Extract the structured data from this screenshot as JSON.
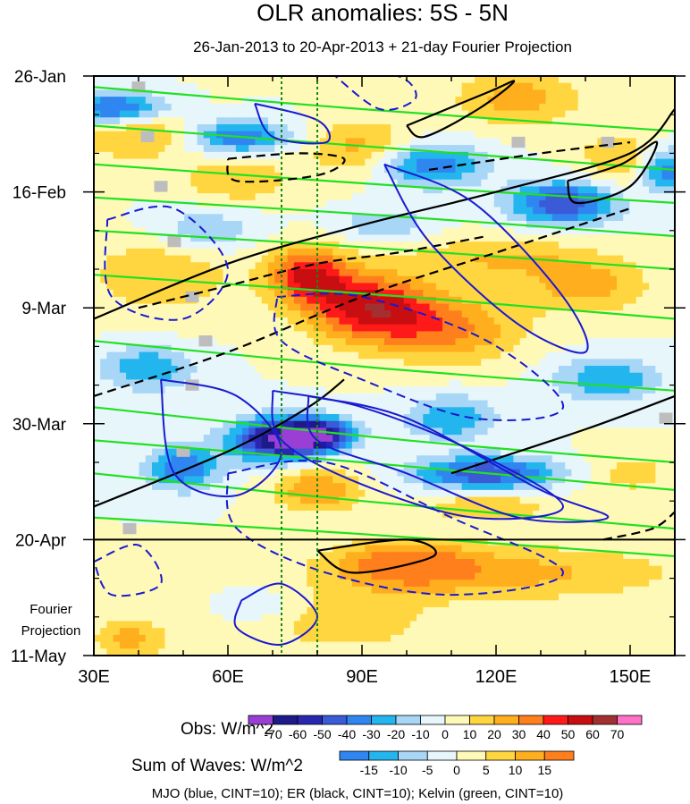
{
  "chart_data": {
    "type": "heatmap",
    "title": "OLR anomalies: 5S - 5N",
    "subtitle": "26-Jan-2013 to 20-Apr-2013 + 21-day Fourier Projection",
    "x_axis": {
      "range": [
        30,
        160
      ],
      "ticks": [
        30,
        60,
        90,
        120,
        150
      ],
      "tick_labels": [
        "30E",
        "60E",
        "90E",
        "120E",
        "150E"
      ],
      "units": "degrees east"
    },
    "y_axis": {
      "range_days": [
        0,
        105
      ],
      "ticks_days": [
        0,
        21,
        42,
        63,
        84,
        105
      ],
      "tick_labels": [
        "26-Jan",
        "16-Feb",
        "9-Mar",
        "30-Mar",
        "20-Apr",
        "11-May"
      ],
      "direction": "time increases downward"
    },
    "projection_label": [
      "Fourier",
      "Projection"
    ],
    "projection_start_day": 84,
    "reference_longitudes": [
      72,
      80
    ],
    "obs_colorbar": {
      "label": "Obs: W/m^2",
      "levels": [
        -70,
        -60,
        -50,
        -40,
        -30,
        -20,
        -10,
        0,
        10,
        20,
        30,
        40,
        50,
        60,
        70
      ],
      "colors": [
        "#9a3fd6",
        "#1e1a8a",
        "#2727b0",
        "#3a5ad8",
        "#2f86f0",
        "#23b6ee",
        "#a8d6f6",
        "#e7f6fb",
        "#fff9b8",
        "#ffd640",
        "#ffae1e",
        "#ff7f1c",
        "#ff1a1a",
        "#c80e10",
        "#a33030",
        "#ff70c8"
      ]
    },
    "waves_colorbar": {
      "label": "Sum of Waves: W/m^2",
      "levels": [
        -15,
        -10,
        -5,
        0,
        5,
        10,
        15
      ],
      "colors": [
        "#2f86f0",
        "#23b6ee",
        "#a8d6f6",
        "#e7f6fb",
        "#fff9b8",
        "#ffd640",
        "#ffae1e",
        "#ff7f1c"
      ]
    },
    "features": [
      {
        "lon": 78,
        "day": 36,
        "a": 9,
        "b": 5,
        "val": 50
      },
      {
        "lon": 92,
        "day": 42,
        "a": 14,
        "b": 6,
        "val": 55
      },
      {
        "lon": 110,
        "day": 46,
        "a": 16,
        "b": 6,
        "val": 30
      },
      {
        "lon": 120,
        "day": 33,
        "a": 20,
        "b": 4,
        "val": 20
      },
      {
        "lon": 140,
        "day": 38,
        "a": 14,
        "b": 5,
        "val": 25
      },
      {
        "lon": 45,
        "day": 36,
        "a": 16,
        "b": 7,
        "val": 20
      },
      {
        "lon": 40,
        "day": 10,
        "a": 14,
        "b": 5,
        "val": 25
      },
      {
        "lon": 62,
        "day": 19,
        "a": 12,
        "b": 4,
        "val": 20
      },
      {
        "lon": 90,
        "day": 13,
        "a": 12,
        "b": 5,
        "val": 25
      },
      {
        "lon": 125,
        "day": 4,
        "a": 14,
        "b": 5,
        "val": 25
      },
      {
        "lon": 148,
        "day": 15,
        "a": 10,
        "b": 5,
        "val": 20
      },
      {
        "lon": 80,
        "day": 75,
        "a": 10,
        "b": 4,
        "val": 30
      },
      {
        "lon": 118,
        "day": 78,
        "a": 14,
        "b": 3,
        "val": 20
      },
      {
        "lon": 150,
        "day": 72,
        "a": 10,
        "b": 4,
        "val": 15
      },
      {
        "lon": 70,
        "day": 66,
        "a": 10,
        "b": 4,
        "val": -60
      },
      {
        "lon": 80,
        "day": 65,
        "a": 8,
        "b": 3,
        "val": -70
      },
      {
        "lon": 118,
        "day": 72,
        "a": 16,
        "b": 3,
        "val": -50
      },
      {
        "lon": 50,
        "day": 71,
        "a": 8,
        "b": 4,
        "val": -40
      },
      {
        "lon": 35,
        "day": 6,
        "a": 12,
        "b": 3,
        "val": -50
      },
      {
        "lon": 62,
        "day": 11,
        "a": 12,
        "b": 3,
        "val": -40
      },
      {
        "lon": 105,
        "day": 16,
        "a": 12,
        "b": 4,
        "val": -40
      },
      {
        "lon": 135,
        "day": 23,
        "a": 12,
        "b": 4,
        "val": -50
      },
      {
        "lon": 158,
        "day": 17,
        "a": 6,
        "b": 4,
        "val": -40
      },
      {
        "lon": 42,
        "day": 53,
        "a": 10,
        "b": 4,
        "val": -30
      },
      {
        "lon": 110,
        "day": 62,
        "a": 10,
        "b": 4,
        "val": -30
      },
      {
        "lon": 145,
        "day": 55,
        "a": 12,
        "b": 4,
        "val": -30
      },
      {
        "lon": 95,
        "day": 27,
        "a": 10,
        "b": 3,
        "val": -20
      },
      {
        "lon": 55,
        "day": 28,
        "a": 12,
        "b": 4,
        "val": -20
      },
      {
        "lon": 85,
        "day": 99,
        "a": 22,
        "b": 6,
        "val": 8
      },
      {
        "lon": 120,
        "day": 90,
        "a": 40,
        "b": 5,
        "val": 12
      },
      {
        "lon": 100,
        "day": 88,
        "a": 14,
        "b": 4,
        "val": 15
      },
      {
        "lon": 38,
        "day": 102,
        "a": 8,
        "b": 4,
        "val": 12
      },
      {
        "lon": 68,
        "day": 96,
        "a": 10,
        "b": 4,
        "val": -6
      }
    ],
    "mjo_contours": [
      {
        "label": "MJO +10",
        "dashed": false,
        "points": [
          [
            63,
            95
          ],
          [
            72,
            92
          ],
          [
            80,
            98
          ],
          [
            72,
            103
          ],
          [
            62,
            100
          ],
          [
            63,
            95
          ]
        ]
      },
      {
        "label": "MJO +10",
        "dashed": false,
        "points": [
          [
            70,
            57
          ],
          [
            90,
            60
          ],
          [
            115,
            68
          ],
          [
            135,
            78
          ],
          [
            115,
            80
          ],
          [
            90,
            74
          ],
          [
            72,
            66
          ],
          [
            70,
            57
          ]
        ]
      },
      {
        "label": "MJO +10",
        "dashed": false,
        "points": [
          [
            78,
            58
          ],
          [
            100,
            62
          ],
          [
            130,
            75
          ],
          [
            145,
            80
          ],
          [
            125,
            80
          ],
          [
            100,
            72
          ],
          [
            80,
            66
          ],
          [
            78,
            58
          ]
        ]
      },
      {
        "label": "MJO +10",
        "dashed": false,
        "points": [
          [
            45,
            55
          ],
          [
            62,
            58
          ],
          [
            72,
            68
          ],
          [
            62,
            76
          ],
          [
            48,
            72
          ],
          [
            45,
            55
          ]
        ]
      },
      {
        "label": "MJO +10",
        "dashed": false,
        "points": [
          [
            95,
            16
          ],
          [
            115,
            23
          ],
          [
            135,
            40
          ],
          [
            140,
            50
          ],
          [
            125,
            45
          ],
          [
            105,
            30
          ],
          [
            95,
            16
          ]
        ]
      },
      {
        "label": "MJO +10",
        "dashed": false,
        "points": [
          [
            66,
            5
          ],
          [
            80,
            8
          ],
          [
            82,
            12
          ],
          [
            70,
            11
          ],
          [
            66,
            5
          ]
        ]
      },
      {
        "label": "MJO -10",
        "dashed": true,
        "points": [
          [
            33,
            26
          ],
          [
            48,
            24
          ],
          [
            60,
            35
          ],
          [
            50,
            44
          ],
          [
            34,
            40
          ],
          [
            33,
            26
          ]
        ]
      },
      {
        "label": "MJO -10",
        "dashed": true,
        "points": [
          [
            71,
            40
          ],
          [
            90,
            40
          ],
          [
            118,
            48
          ],
          [
            135,
            60
          ],
          [
            115,
            62
          ],
          [
            90,
            55
          ],
          [
            72,
            48
          ],
          [
            71,
            40
          ]
        ]
      },
      {
        "label": "MJO -10",
        "dashed": true,
        "points": [
          [
            60,
            72
          ],
          [
            82,
            70
          ],
          [
            110,
            80
          ],
          [
            135,
            90
          ],
          [
            110,
            94
          ],
          [
            82,
            90
          ],
          [
            62,
            82
          ],
          [
            60,
            72
          ]
        ]
      },
      {
        "label": "MJO -10",
        "dashed": true,
        "points": [
          [
            30,
            88
          ],
          [
            40,
            85
          ],
          [
            45,
            92
          ],
          [
            34,
            94
          ],
          [
            30,
            88
          ]
        ]
      },
      {
        "label": "MJO -10",
        "dashed": true,
        "points": [
          [
            84,
            0
          ],
          [
            98,
            0
          ],
          [
            102,
            4
          ],
          [
            94,
            6
          ],
          [
            84,
            0
          ]
        ]
      }
    ],
    "er_contours": [
      {
        "label": "ER +10",
        "dashed": false,
        "points": [
          [
            30,
            44
          ],
          [
            60,
            34
          ],
          [
            90,
            27
          ],
          [
            120,
            21
          ],
          [
            150,
            14
          ],
          [
            160,
            6
          ]
        ]
      },
      {
        "label": "ER +10",
        "dashed": false,
        "points": [
          [
            30,
            78
          ],
          [
            60,
            68
          ],
          [
            78,
            60
          ],
          [
            86,
            55
          ]
        ]
      },
      {
        "label": "ER +10",
        "dashed": false,
        "points": [
          [
            110,
            72
          ],
          [
            140,
            64
          ],
          [
            160,
            58
          ]
        ]
      },
      {
        "label": "ER +10",
        "dashed": false,
        "points": [
          [
            100,
            9
          ],
          [
            118,
            3
          ],
          [
            124,
            1
          ],
          [
            116,
            6
          ],
          [
            104,
            11
          ],
          [
            100,
            9
          ]
        ]
      },
      {
        "label": "ER +10",
        "dashed": false,
        "points": [
          [
            136,
            19
          ],
          [
            148,
            16
          ],
          [
            156,
            12
          ],
          [
            150,
            20
          ],
          [
            138,
            23
          ],
          [
            136,
            19
          ]
        ]
      },
      {
        "label": "ER +10",
        "dashed": false,
        "points": [
          [
            80,
            86
          ],
          [
            100,
            84
          ],
          [
            106,
            87
          ],
          [
            88,
            90
          ],
          [
            80,
            86
          ]
        ]
      },
      {
        "label": "ER -10",
        "dashed": true,
        "points": [
          [
            30,
            58
          ],
          [
            60,
            50
          ],
          [
            90,
            40
          ],
          [
            120,
            32
          ],
          [
            150,
            24
          ]
        ]
      },
      {
        "label": "ER -10",
        "dashed": true,
        "points": [
          [
            60,
            15
          ],
          [
            76,
            14
          ],
          [
            86,
            15
          ],
          [
            80,
            18
          ],
          [
            62,
            19
          ],
          [
            60,
            15
          ]
        ]
      },
      {
        "label": "ER -10",
        "dashed": true,
        "points": [
          [
            105,
            17
          ],
          [
            130,
            14
          ],
          [
            150,
            12
          ]
        ]
      },
      {
        "label": "ER -10",
        "dashed": true,
        "points": [
          [
            40,
            42
          ],
          [
            60,
            38
          ],
          [
            80,
            34
          ],
          [
            98,
            32
          ],
          [
            118,
            29
          ]
        ]
      },
      {
        "label": "ER -10",
        "dashed": true,
        "points": [
          [
            144,
            84
          ],
          [
            155,
            82
          ],
          [
            160,
            79
          ]
        ]
      }
    ],
    "kelvin_lines": [
      {
        "label": "Kelvin +/-10",
        "points": [
          [
            30,
            2
          ],
          [
            90,
            6
          ],
          [
            160,
            10
          ]
        ]
      },
      {
        "label": "Kelvin +/-10",
        "points": [
          [
            30,
            9
          ],
          [
            95,
            13
          ],
          [
            160,
            17
          ]
        ]
      },
      {
        "label": "Kelvin +/-10",
        "points": [
          [
            30,
            16
          ],
          [
            100,
            20
          ],
          [
            160,
            23
          ]
        ]
      },
      {
        "label": "Kelvin +/-10",
        "points": [
          [
            30,
            22
          ],
          [
            90,
            25
          ],
          [
            160,
            29
          ]
        ]
      },
      {
        "label": "Kelvin +/-10",
        "points": [
          [
            30,
            28
          ],
          [
            90,
            31
          ],
          [
            160,
            35
          ]
        ]
      },
      {
        "label": "Kelvin +/-10",
        "points": [
          [
            30,
            36
          ],
          [
            100,
            40
          ],
          [
            160,
            44
          ]
        ]
      },
      {
        "label": "Kelvin +/-10",
        "points": [
          [
            30,
            48
          ],
          [
            95,
            53
          ],
          [
            160,
            57
          ]
        ]
      },
      {
        "label": "Kelvin +/-10",
        "points": [
          [
            30,
            60
          ],
          [
            100,
            66
          ],
          [
            160,
            70
          ]
        ]
      },
      {
        "label": "Kelvin +/-10",
        "points": [
          [
            30,
            66
          ],
          [
            90,
            70
          ],
          [
            160,
            75
          ]
        ]
      },
      {
        "label": "Kelvin +/-10",
        "points": [
          [
            30,
            72
          ],
          [
            90,
            77
          ],
          [
            160,
            82
          ]
        ]
      },
      {
        "label": "Kelvin +/-10",
        "points": [
          [
            30,
            80
          ],
          [
            90,
            83
          ],
          [
            160,
            87
          ]
        ]
      }
    ],
    "missing_data_blocks": [
      {
        "lon": 40,
        "day": 2
      },
      {
        "lon": 42,
        "day": 11
      },
      {
        "lon": 45,
        "day": 20
      },
      {
        "lon": 48,
        "day": 30
      },
      {
        "lon": 52,
        "day": 40
      },
      {
        "lon": 55,
        "day": 48
      },
      {
        "lon": 52,
        "day": 56
      },
      {
        "lon": 50,
        "day": 68
      },
      {
        "lon": 38,
        "day": 82
      },
      {
        "lon": 125,
        "day": 12
      },
      {
        "lon": 145,
        "day": 12
      },
      {
        "lon": 158,
        "day": 62
      }
    ],
    "footer": "MJO (blue, CINT=10); ER (black, CINT=10); Kelvin (green, CINT=10)"
  }
}
